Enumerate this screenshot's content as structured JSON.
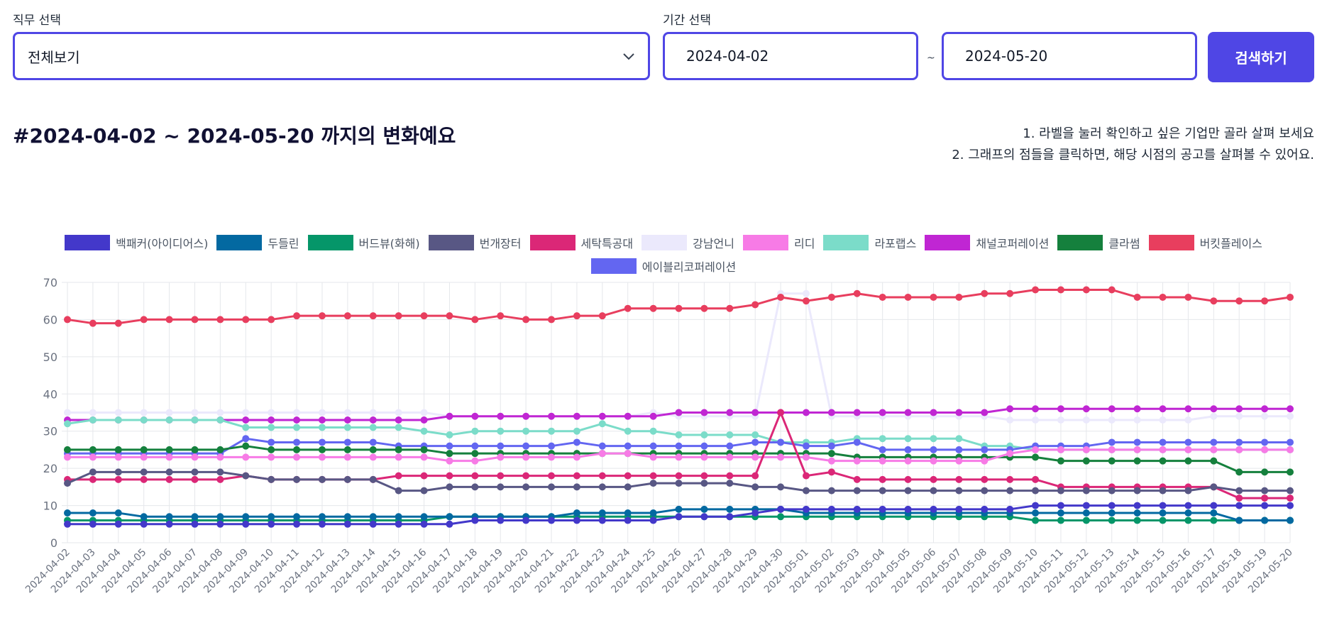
{
  "filters": {
    "job_label": "직무 선택",
    "job_value": "전체보기",
    "period_label": "기간 선택",
    "start_date": "2024-04-02",
    "end_date": "2024-05-20",
    "tilde": "~",
    "search_label": "검색하기"
  },
  "header": {
    "title": "#2024-04-02 ~ 2024-05-20 까지의 변화예요",
    "hint1": "1. 라벨을 눌러 확인하고 싶은 기업만 골라 살펴 보세요",
    "hint2": "2. 그래프의 점들을 클릭하면, 해당 시점의 공고를 살펴볼 수 있어요."
  },
  "colors": {
    "accent": "#4f46e5"
  },
  "chart_data": {
    "type": "line",
    "title": "",
    "xlabel": "",
    "ylabel": "",
    "ylim": [
      0,
      70
    ],
    "yticks": [
      0,
      10,
      20,
      30,
      40,
      50,
      60,
      70
    ],
    "grid": true,
    "legend_position": "top",
    "categories": [
      "2024-04-02",
      "2024-04-03",
      "2024-04-04",
      "2024-04-05",
      "2024-04-06",
      "2024-04-07",
      "2024-04-08",
      "2024-04-09",
      "2024-04-10",
      "2024-04-11",
      "2024-04-12",
      "2024-04-13",
      "2024-04-14",
      "2024-04-15",
      "2024-04-16",
      "2024-04-17",
      "2024-04-18",
      "2024-04-19",
      "2024-04-20",
      "2024-04-21",
      "2024-04-22",
      "2024-04-23",
      "2024-04-24",
      "2024-04-25",
      "2024-04-26",
      "2024-04-27",
      "2024-04-28",
      "2024-04-29",
      "2024-04-30",
      "2024-05-01",
      "2024-05-02",
      "2024-05-03",
      "2024-05-04",
      "2024-05-05",
      "2024-05-06",
      "2024-05-07",
      "2024-05-08",
      "2024-05-09",
      "2024-05-10",
      "2024-05-11",
      "2024-05-12",
      "2024-05-13",
      "2024-05-14",
      "2024-05-15",
      "2024-05-16",
      "2024-05-17",
      "2024-05-18",
      "2024-05-19",
      "2024-05-20"
    ],
    "series": [
      {
        "name": "강남언니",
        "color": "#ebe9fc",
        "values": [
          35,
          35,
          35,
          35,
          35,
          35,
          35,
          35,
          35,
          35,
          35,
          35,
          35,
          35,
          35,
          34,
          34,
          34,
          34,
          34,
          34,
          34,
          34,
          35,
          34,
          34,
          34,
          34,
          67,
          67,
          34,
          34,
          34,
          34,
          34,
          34,
          34,
          33,
          33,
          33,
          33,
          33,
          33,
          33,
          33,
          34,
          34,
          34,
          34
        ]
      },
      {
        "name": "채널코퍼레이션",
        "color": "#c026d3",
        "values": [
          33,
          33,
          33,
          33,
          33,
          33,
          33,
          33,
          33,
          33,
          33,
          33,
          33,
          33,
          33,
          34,
          34,
          34,
          34,
          34,
          34,
          34,
          34,
          34,
          35,
          35,
          35,
          35,
          35,
          35,
          35,
          35,
          35,
          35,
          35,
          35,
          35,
          36,
          36,
          36,
          36,
          36,
          36,
          36,
          36,
          36,
          36,
          36,
          36
        ]
      },
      {
        "name": "라포랩스",
        "color": "#7bdcc9",
        "values": [
          32,
          33,
          33,
          33,
          33,
          33,
          33,
          31,
          31,
          31,
          31,
          31,
          31,
          31,
          30,
          29,
          30,
          30,
          30,
          30,
          30,
          32,
          30,
          30,
          29,
          29,
          29,
          29,
          27,
          27,
          27,
          28,
          28,
          28,
          28,
          28,
          26,
          26,
          25,
          25,
          25,
          25,
          25,
          25,
          25,
          25,
          25,
          25,
          25
        ]
      },
      {
        "name": "에이블리코퍼레이션",
        "color": "#6366f1",
        "values": [
          24,
          24,
          24,
          24,
          24,
          24,
          24,
          28,
          27,
          27,
          27,
          27,
          27,
          26,
          26,
          26,
          26,
          26,
          26,
          26,
          27,
          26,
          26,
          26,
          26,
          26,
          26,
          27,
          27,
          26,
          26,
          27,
          25,
          25,
          25,
          25,
          25,
          25,
          26,
          26,
          26,
          27,
          27,
          27,
          27,
          27,
          27,
          27,
          27
        ]
      },
      {
        "name": "클라썸",
        "color": "#15803d",
        "values": [
          25,
          25,
          25,
          25,
          25,
          25,
          25,
          26,
          25,
          25,
          25,
          25,
          25,
          25,
          25,
          24,
          24,
          24,
          24,
          24,
          24,
          24,
          24,
          24,
          24,
          24,
          24,
          24,
          24,
          24,
          24,
          23,
          23,
          23,
          23,
          23,
          23,
          23,
          23,
          22,
          22,
          22,
          22,
          22,
          22,
          22,
          19,
          19,
          19
        ]
      },
      {
        "name": "리디",
        "color": "#f77be6",
        "values": [
          23,
          23,
          23,
          23,
          23,
          23,
          23,
          23,
          23,
          23,
          23,
          23,
          23,
          23,
          23,
          22,
          22,
          23,
          23,
          23,
          23,
          24,
          24,
          23,
          23,
          23,
          23,
          23,
          23,
          23,
          22,
          22,
          22,
          22,
          22,
          22,
          22,
          24,
          25,
          25,
          25,
          25,
          25,
          25,
          25,
          25,
          25,
          25,
          25
        ]
      },
      {
        "name": "세탁특공대",
        "color": "#db2777",
        "values": [
          17,
          17,
          17,
          17,
          17,
          17,
          17,
          18,
          17,
          17,
          17,
          17,
          17,
          18,
          18,
          18,
          18,
          18,
          18,
          18,
          18,
          18,
          18,
          18,
          18,
          18,
          18,
          18,
          35,
          18,
          19,
          17,
          17,
          17,
          17,
          17,
          17,
          17,
          17,
          15,
          15,
          15,
          15,
          15,
          15,
          15,
          12,
          12,
          12
        ]
      },
      {
        "name": "번개장터",
        "color": "#585784",
        "values": [
          16,
          19,
          19,
          19,
          19,
          19,
          19,
          18,
          17,
          17,
          17,
          17,
          17,
          14,
          14,
          15,
          15,
          15,
          15,
          15,
          15,
          15,
          15,
          16,
          16,
          16,
          16,
          15,
          15,
          14,
          14,
          14,
          14,
          14,
          14,
          14,
          14,
          14,
          14,
          14,
          14,
          14,
          14,
          14,
          14,
          15,
          14,
          14,
          14
        ]
      },
      {
        "name": "버드뷰(화해)",
        "color": "#059669",
        "values": [
          6,
          6,
          6,
          6,
          6,
          6,
          6,
          6,
          6,
          6,
          6,
          6,
          6,
          6,
          6,
          7,
          7,
          7,
          7,
          7,
          7,
          7,
          7,
          7,
          7,
          7,
          7,
          7,
          7,
          7,
          7,
          7,
          7,
          7,
          7,
          7,
          7,
          7,
          6,
          6,
          6,
          6,
          6,
          6,
          6,
          6,
          6,
          6,
          6
        ]
      },
      {
        "name": "두들린",
        "color": "#0369a1",
        "values": [
          8,
          8,
          8,
          7,
          7,
          7,
          7,
          7,
          7,
          7,
          7,
          7,
          7,
          7,
          7,
          7,
          7,
          7,
          7,
          7,
          8,
          8,
          8,
          8,
          9,
          9,
          9,
          9,
          9,
          8,
          8,
          8,
          8,
          8,
          8,
          8,
          8,
          8,
          8,
          8,
          8,
          8,
          8,
          8,
          8,
          8,
          6,
          6,
          6
        ]
      },
      {
        "name": "백패커(아이디어스)",
        "color": "#4338ca",
        "values": [
          5,
          5,
          5,
          5,
          5,
          5,
          5,
          5,
          5,
          5,
          5,
          5,
          5,
          5,
          5,
          5,
          6,
          6,
          6,
          6,
          6,
          6,
          6,
          6,
          7,
          7,
          7,
          8,
          9,
          9,
          9,
          9,
          9,
          9,
          9,
          9,
          9,
          9,
          10,
          10,
          10,
          10,
          10,
          10,
          10,
          10,
          10,
          10,
          10
        ]
      },
      {
        "name": "버킷플레이스",
        "color": "#e83e5e",
        "values": [
          60,
          59,
          59,
          60,
          60,
          60,
          60,
          60,
          60,
          61,
          61,
          61,
          61,
          61,
          61,
          61,
          60,
          61,
          60,
          60,
          61,
          61,
          63,
          63,
          63,
          63,
          63,
          64,
          66,
          65,
          66,
          67,
          66,
          66,
          66,
          66,
          67,
          67,
          68,
          68,
          68,
          68,
          66,
          66,
          66,
          65,
          65,
          65,
          66
        ]
      }
    ],
    "legend": [
      [
        "백패커(아이디어스)",
        "두들린",
        "버드뷰(화해)",
        "번개장터",
        "세탁특공대",
        "강남언니",
        "리디",
        "라포랩스",
        "채널코퍼레이션",
        "클라썸",
        "버킷플레이스"
      ],
      [
        "에이블리코퍼레이션"
      ]
    ]
  }
}
